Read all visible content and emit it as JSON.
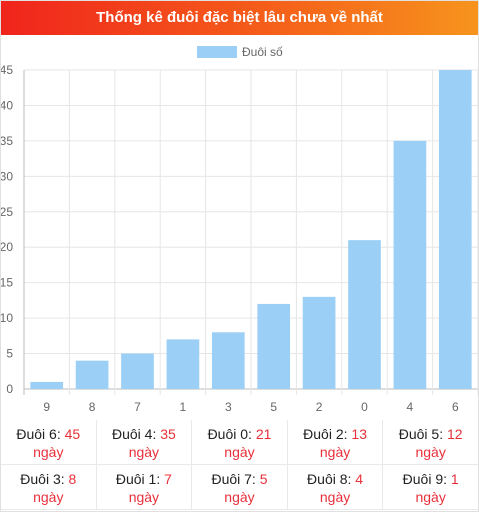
{
  "header": {
    "title": "Thống kê đuôi đặc biệt lâu chưa về nhất"
  },
  "chart_data": {
    "type": "bar",
    "legend": {
      "label": "Đuôi số",
      "position": "top",
      "color": "#9ccff5"
    },
    "categories": [
      "9",
      "8",
      "7",
      "1",
      "3",
      "5",
      "2",
      "0",
      "4",
      "6"
    ],
    "values": [
      1,
      4,
      5,
      7,
      8,
      12,
      13,
      21,
      35,
      45
    ],
    "ylim": [
      0,
      45
    ],
    "yticks": [
      0,
      5,
      10,
      15,
      20,
      25,
      30,
      35,
      40,
      45
    ],
    "grid": true,
    "bar_color": "#9ccff5"
  },
  "stats": [
    {
      "label": "Đuôi 6:",
      "value": "45",
      "unit": "ngày"
    },
    {
      "label": "Đuôi 4:",
      "value": "35",
      "unit": "ngày"
    },
    {
      "label": "Đuôi 0:",
      "value": "21",
      "unit": "ngày"
    },
    {
      "label": "Đuôi 2:",
      "value": "13",
      "unit": "ngày"
    },
    {
      "label": "Đuôi 5:",
      "value": "12",
      "unit": "ngày"
    },
    {
      "label": "Đuôi 3:",
      "value": "8",
      "unit": "ngày"
    },
    {
      "label": "Đuôi 1:",
      "value": "7",
      "unit": "ngày"
    },
    {
      "label": "Đuôi 7:",
      "value": "5",
      "unit": "ngày"
    },
    {
      "label": "Đuôi 8:",
      "value": "4",
      "unit": "ngày"
    },
    {
      "label": "Đuôi 9:",
      "value": "1",
      "unit": "ngày"
    }
  ]
}
